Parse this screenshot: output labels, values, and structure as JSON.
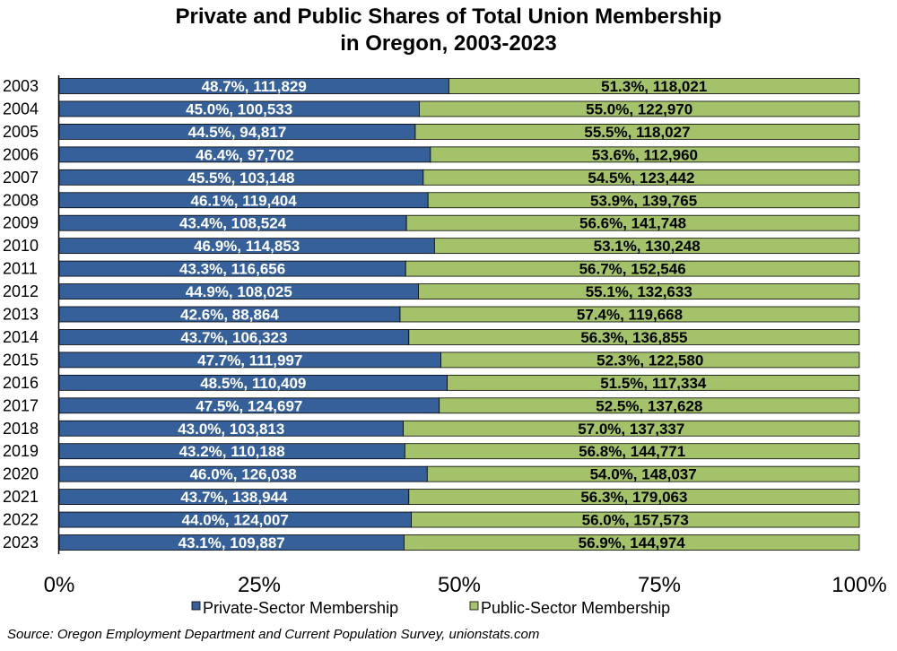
{
  "chart_data": {
    "type": "bar",
    "orientation": "horizontal",
    "stacked": "percent",
    "title_lines": [
      "Private and Public Shares of Total Union Membership",
      "in Oregon, 2003-2023"
    ],
    "categories": [
      "2003",
      "2004",
      "2005",
      "2006",
      "2007",
      "2008",
      "2009",
      "2010",
      "2011",
      "2012",
      "2013",
      "2014",
      "2015",
      "2016",
      "2017",
      "2018",
      "2019",
      "2020",
      "2021",
      "2022",
      "2023"
    ],
    "series": [
      {
        "name": "Private-Sector Membership",
        "color": "#36609a",
        "percent": [
          48.7,
          45.0,
          44.5,
          46.4,
          45.5,
          46.1,
          43.4,
          46.9,
          43.3,
          44.9,
          42.6,
          43.7,
          47.7,
          48.5,
          47.5,
          43.0,
          43.2,
          46.0,
          43.7,
          44.0,
          43.1
        ],
        "labels": [
          "48.7%,  111,829",
          "45.0%,  100,533",
          "44.5%,  94,817",
          "46.4%,  97,702",
          "45.5%,  103,148",
          "46.1%,  119,404",
          "43.4%,  108,524",
          "46.9%,  114,853",
          "43.3%,  116,656",
          "44.9%,  108,025",
          "42.6%,  88,864",
          "43.7%,  106,323",
          "47.7%,  111,997",
          "48.5%,  110,409",
          "47.5%,  124,697",
          "43.0%,  103,813",
          "43.2%,  110,188",
          "46.0%,  126,038",
          "43.7%,  138,944",
          "44.0%,  124,007",
          "43.1%,  109,887"
        ]
      },
      {
        "name": "Public-Sector Membership",
        "color": "#a3c26a",
        "percent": [
          51.3,
          55.0,
          55.5,
          53.6,
          54.5,
          53.9,
          56.6,
          53.1,
          56.7,
          55.1,
          57.4,
          56.3,
          52.3,
          51.5,
          52.5,
          57.0,
          56.8,
          54.0,
          56.3,
          56.0,
          56.9
        ],
        "labels": [
          "51.3%,  118,021",
          "55.0%,  122,970",
          "55.5%,  118,027",
          "53.6%,  112,960",
          "54.5%,  123,442",
          "53.9%,  139,765",
          "56.6%,  141,748",
          "53.1%,  130,248",
          "56.7%,  152,546",
          "55.1%,  132,633",
          "57.4%,  119,668",
          "56.3%,  136,855",
          "52.3%,  122,580",
          "51.5%,  117,334",
          "52.5%,  137,628",
          "57.0%,  137,337",
          "56.8%,  144,771",
          "54.0%,  148,037",
          "56.3%,  179,063",
          "56.0%,  157,573",
          "56.9%,  144,974"
        ]
      }
    ],
    "xlim": [
      0,
      100
    ],
    "xticks": [
      "0%",
      "25%",
      "50%",
      "75%",
      "100%"
    ],
    "grid": false,
    "legend": "bottom"
  },
  "source": "Source: Oregon Employment Department and Current Population Survey, unionstats.com"
}
